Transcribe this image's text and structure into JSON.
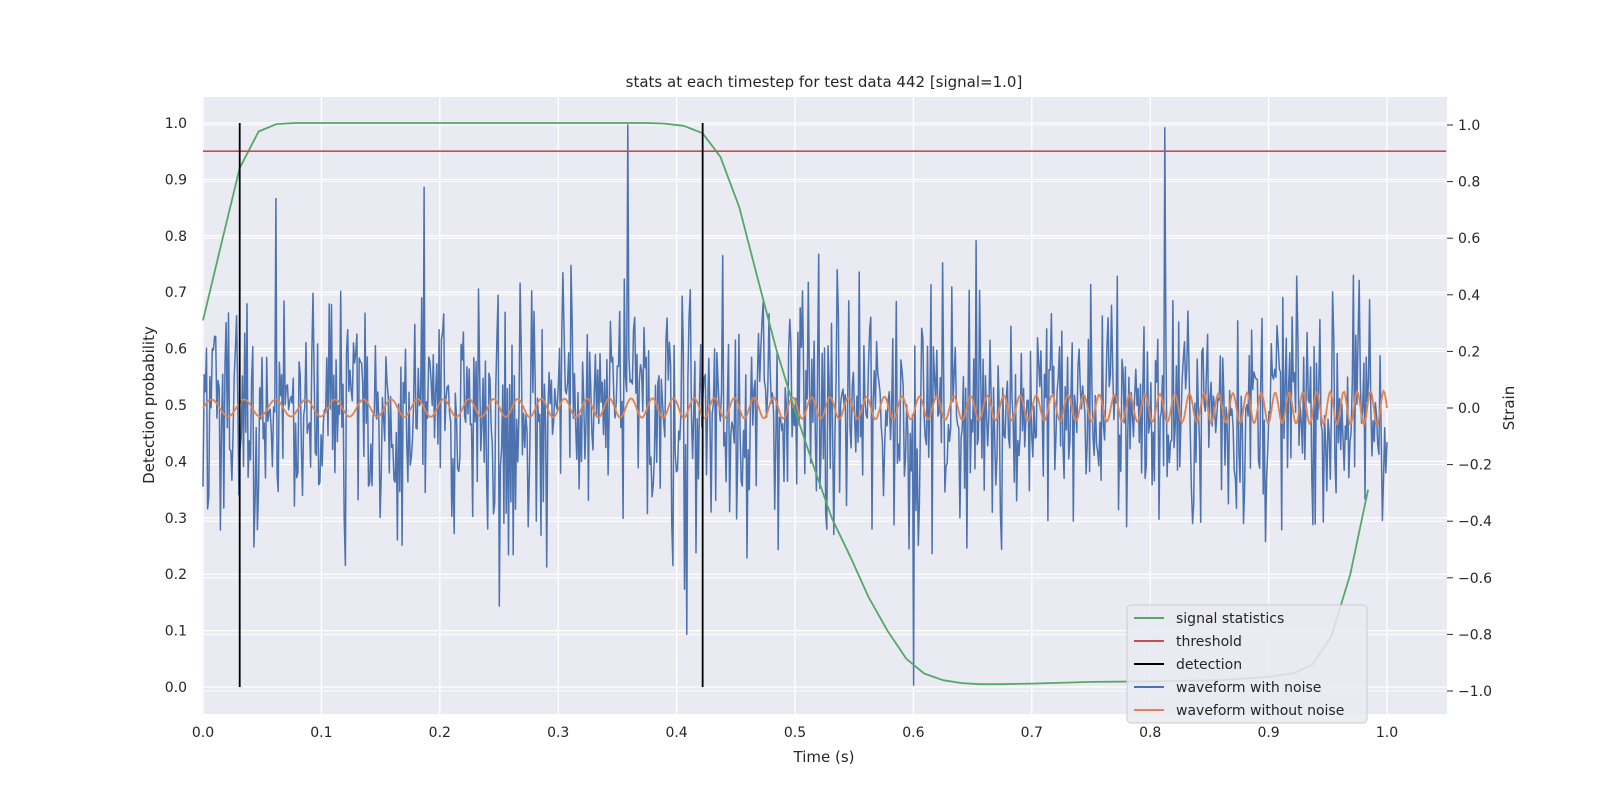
{
  "chart_data": {
    "type": "line",
    "title": "stats at each timestep for test data 442 [signal=1.0]",
    "xlabel": "Time (s)",
    "ylabel_left": "Detection probability",
    "ylabel_right": "Strain",
    "xlim": [
      0.0,
      1.05
    ],
    "ylim_left": [
      -0.05,
      1.05
    ],
    "ylim_right": [
      -1.1,
      1.1
    ],
    "x_ticks": [
      "0.0",
      "0.1",
      "0.2",
      "0.3",
      "0.4",
      "0.5",
      "0.6",
      "0.7",
      "0.8",
      "0.9",
      "1.0"
    ],
    "y_ticks_left": [
      "0.0",
      "0.1",
      "0.2",
      "0.3",
      "0.4",
      "0.5",
      "0.6",
      "0.7",
      "0.8",
      "0.9",
      "1.0"
    ],
    "y_ticks_right": [
      "−1.0",
      "−0.8",
      "−0.6",
      "−0.4",
      "−0.2",
      "0.0",
      "0.2",
      "0.4",
      "0.6",
      "0.8",
      "1.0"
    ],
    "grid": true,
    "legend_position": "lower-right",
    "colors": {
      "signal_statistics": "#55a868",
      "threshold": "#c44e52",
      "detection": "#000000",
      "waveform_with_noise": "#4c72b0",
      "waveform_without_noise": "#dd8452",
      "plot_background": "#eaeaf2",
      "grid": "#ffffff"
    },
    "series": [
      {
        "name": "signal statistics",
        "axis": "left",
        "x": [
          0.0,
          0.016,
          0.031,
          0.047,
          0.062,
          0.078,
          0.1,
          0.2,
          0.3,
          0.359,
          0.375,
          0.39,
          0.406,
          0.422,
          0.437,
          0.453,
          0.469,
          0.484,
          0.5,
          0.516,
          0.531,
          0.547,
          0.562,
          0.578,
          0.594,
          0.609,
          0.625,
          0.641,
          0.656,
          0.672,
          0.7,
          0.75,
          0.8,
          0.86,
          0.9,
          0.922,
          0.937,
          0.953,
          0.969,
          0.984
        ],
        "y": [
          0.65,
          0.79,
          0.92,
          0.985,
          0.998,
          1.0,
          1.0,
          1.0,
          1.0,
          1.0,
          1.0,
          0.999,
          0.995,
          0.982,
          0.94,
          0.85,
          0.72,
          0.6,
          0.49,
          0.39,
          0.3,
          0.23,
          0.16,
          0.1,
          0.05,
          0.024,
          0.012,
          0.007,
          0.005,
          0.005,
          0.006,
          0.009,
          0.01,
          0.012,
          0.018,
          0.025,
          0.04,
          0.09,
          0.2,
          0.35
        ]
      },
      {
        "name": "threshold",
        "axis": "left",
        "x": [
          0.0,
          1.05
        ],
        "y": [
          0.95,
          0.95
        ]
      },
      {
        "name": "detection",
        "axis": "left",
        "type": "vlines",
        "x": [
          0.031,
          0.422
        ],
        "ymin": 0.0,
        "ymax": 1.0
      },
      {
        "name": "waveform with noise",
        "axis": "right",
        "x_range": [
          0.0,
          1.0
        ],
        "n_points": 1024,
        "amplitude_range": [
          -0.98,
          1.0
        ],
        "peaks": [
          {
            "x": 0.359,
            "y": 1.0
          },
          {
            "x": 0.812,
            "y": 0.99
          },
          {
            "x": 0.6,
            "y": -0.98
          },
          {
            "x": 0.062,
            "y": 0.74
          },
          {
            "x": 0.187,
            "y": 0.78
          },
          {
            "x": 0.25,
            "y": -0.7
          },
          {
            "x": 0.409,
            "y": -0.8
          }
        ]
      },
      {
        "name": "waveform without noise",
        "axis": "right",
        "x_range": [
          0.0,
          1.0
        ],
        "n_points": 1024,
        "amplitude_start": 0.03,
        "amplitude_end": 0.06,
        "freq_start_hz": 35,
        "freq_end_hz": 90
      }
    ]
  }
}
